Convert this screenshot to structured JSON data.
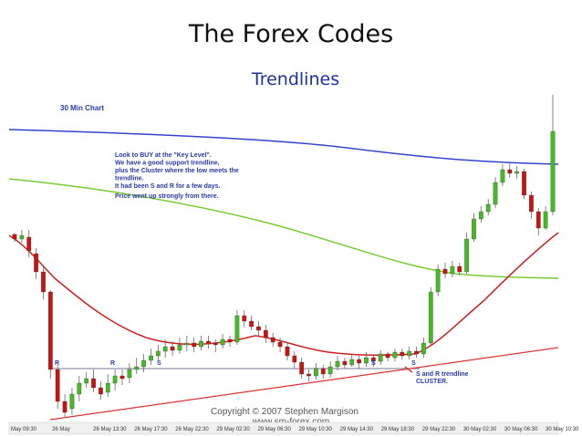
{
  "slide": {
    "title": "The Forex Codes",
    "subtitle": "Trendlines"
  },
  "chart_data": {
    "type": "candlestick",
    "title": "30 Min Chart",
    "annotations": [
      "Look to BUY at the \"Key Level\".",
      "We have a good support trendline,",
      "plus the Cluster where the low meets the",
      "trendline.",
      "It had been S and R for a few days.",
      "Price went up strongly from there."
    ],
    "cluster_label": [
      "S and R trendline",
      "CLUSTER."
    ],
    "level_markers": [
      "R",
      "R",
      "S",
      "S",
      "S"
    ],
    "copyright": [
      "Copyright © 2007 Stephen Margison",
      "www.sm-forex.com"
    ],
    "x_tick_labels": [
      "May 09:30",
      "26 May",
      "26 May 13:30",
      "26 May 17:30",
      "26 May 22:30",
      "29 May 02:30",
      "29 May 06:30",
      "29 May 10:30",
      "29 May 14:30",
      "29 May 18:30",
      "29 May 22:30",
      "30 May 02:30",
      "30 May 06:30",
      "30 May 10:30"
    ],
    "candles": [
      [
        257,
        262,
        255,
        265
      ],
      [
        262,
        258,
        252,
        266
      ],
      [
        260,
        275,
        252,
        282
      ],
      [
        278,
        298,
        272,
        306
      ],
      [
        298,
        320,
        292,
        328
      ],
      [
        320,
        405,
        318,
        415
      ],
      [
        405,
        440,
        400,
        448
      ],
      [
        440,
        452,
        432,
        458
      ],
      [
        448,
        432,
        425,
        455
      ],
      [
        432,
        420,
        412,
        440
      ],
      [
        420,
        415,
        408,
        425
      ],
      [
        415,
        425,
        405,
        430
      ],
      [
        425,
        432,
        418,
        438
      ],
      [
        430,
        420,
        410,
        435
      ],
      [
        420,
        412,
        405,
        428
      ],
      [
        412,
        415,
        405,
        422
      ],
      [
        414,
        405,
        398,
        420
      ],
      [
        405,
        402,
        392,
        410
      ],
      [
        402,
        395,
        388,
        408
      ],
      [
        395,
        390,
        382,
        400
      ],
      [
        390,
        385,
        378,
        395
      ],
      [
        385,
        380,
        372,
        392
      ],
      [
        380,
        384,
        374,
        390
      ],
      [
        384,
        378,
        370,
        388
      ],
      [
        378,
        376,
        368,
        385
      ],
      [
        376,
        380,
        370,
        386
      ],
      [
        380,
        374,
        368,
        384
      ],
      [
        374,
        376,
        368,
        382
      ],
      [
        376,
        378,
        372,
        386
      ],
      [
        378,
        372,
        366,
        382
      ],
      [
        372,
        375,
        368,
        380
      ],
      [
        375,
        346,
        340,
        378
      ],
      [
        346,
        352,
        340,
        358
      ],
      [
        352,
        358,
        346,
        362
      ],
      [
        358,
        362,
        352,
        368
      ],
      [
        362,
        370,
        356,
        376
      ],
      [
        370,
        375,
        365,
        380
      ],
      [
        375,
        380,
        370,
        386
      ],
      [
        380,
        390,
        375,
        395
      ],
      [
        390,
        397,
        385,
        404
      ],
      [
        397,
        410,
        392,
        415
      ],
      [
        410,
        412,
        405,
        418
      ],
      [
        412,
        404,
        398,
        416
      ],
      [
        404,
        410,
        400,
        415
      ],
      [
        410,
        402,
        396,
        414
      ],
      [
        402,
        396,
        390,
        406
      ],
      [
        396,
        400,
        392,
        404
      ],
      [
        400,
        394,
        388,
        402
      ],
      [
        394,
        398,
        390,
        404
      ],
      [
        398,
        392,
        386,
        402
      ],
      [
        392,
        396,
        390,
        402
      ],
      [
        396,
        388,
        384,
        400
      ],
      [
        388,
        392,
        386,
        396
      ],
      [
        392,
        386,
        382,
        396
      ],
      [
        386,
        390,
        382,
        394
      ],
      [
        390,
        385,
        380,
        394
      ],
      [
        385,
        388,
        380,
        392
      ],
      [
        388,
        376,
        370,
        392
      ],
      [
        376,
        320,
        315,
        378
      ],
      [
        320,
        295,
        290,
        325
      ],
      [
        295,
        300,
        288,
        305
      ],
      [
        300,
        292,
        286,
        304
      ],
      [
        292,
        298,
        288,
        302
      ],
      [
        298,
        262,
        255,
        300
      ],
      [
        262,
        240,
        234,
        265
      ],
      [
        240,
        232,
        226,
        244
      ],
      [
        232,
        224,
        218,
        236
      ],
      [
        224,
        200,
        194,
        228
      ],
      [
        200,
        186,
        180,
        204
      ],
      [
        186,
        190,
        178,
        195
      ],
      [
        190,
        188,
        182,
        196
      ],
      [
        188,
        214,
        185,
        218
      ],
      [
        214,
        232,
        210,
        240
      ],
      [
        232,
        250,
        228,
        258
      ],
      [
        250,
        232,
        226,
        252
      ],
      [
        232,
        144,
        104,
        236
      ]
    ]
  }
}
